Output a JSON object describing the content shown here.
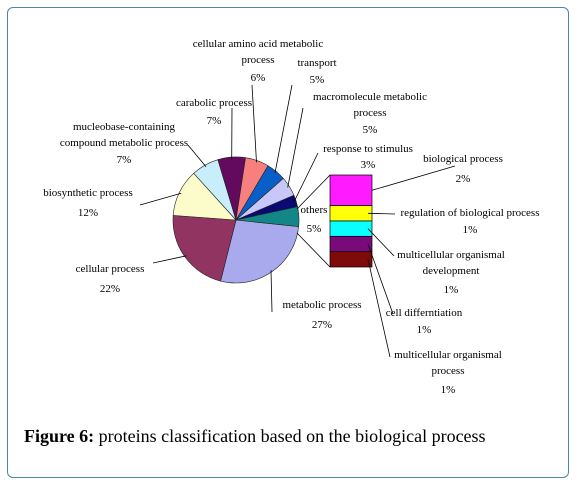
{
  "caption": {
    "label": "Figure 6:",
    "text": " proteins classification based on the biological process"
  },
  "chart_data": {
    "type": "pie",
    "title": "",
    "slices": [
      {
        "label": "metabolic process",
        "value": 27,
        "pct": "27%",
        "color": "#a9a9ee"
      },
      {
        "label": "cellular process",
        "value": 22,
        "pct": "22%",
        "color": "#923461"
      },
      {
        "label": "biosynthetic process",
        "value": 12,
        "pct": "12%",
        "color": "#fcfccb"
      },
      {
        "label": "mucleobase-containing compound metabolic process",
        "value": 7,
        "pct": "7%",
        "color": "#c8eefb"
      },
      {
        "label": "carabolic process",
        "value": 7,
        "pct": "7%",
        "color": "#640a5e"
      },
      {
        "label": "cellular amino acid metabolic process",
        "value": 6,
        "pct": "6%",
        "color": "#f7807e"
      },
      {
        "label": "transport",
        "value": 5,
        "pct": "5%",
        "color": "#0a5ec8"
      },
      {
        "label": "macromolecule metabolic process",
        "value": 5,
        "pct": "5%",
        "color": "#c8c8f8"
      },
      {
        "label": "response to stimulus",
        "value": 3,
        "pct": "3%",
        "color": "#0a0a72"
      },
      {
        "label": "others",
        "value": 5,
        "pct": "5%",
        "color": "#138787"
      }
    ],
    "others_breakdown": [
      {
        "label": "biological process",
        "value": 2,
        "pct": "2%",
        "color": "#ff1aff"
      },
      {
        "label": "regulation of biological process",
        "value": 1,
        "pct": "1%",
        "color": "#ffff0a"
      },
      {
        "label": "multicellular organismal development",
        "value": 1,
        "pct": "1%",
        "color": "#0affff"
      },
      {
        "label": "cell differntiation",
        "value": 1,
        "pct": "1%",
        "color": "#7a0a7a"
      },
      {
        "label": "multicellular organismal process",
        "value": 1,
        "pct": "1%",
        "color": "#7e0a0a"
      }
    ]
  }
}
